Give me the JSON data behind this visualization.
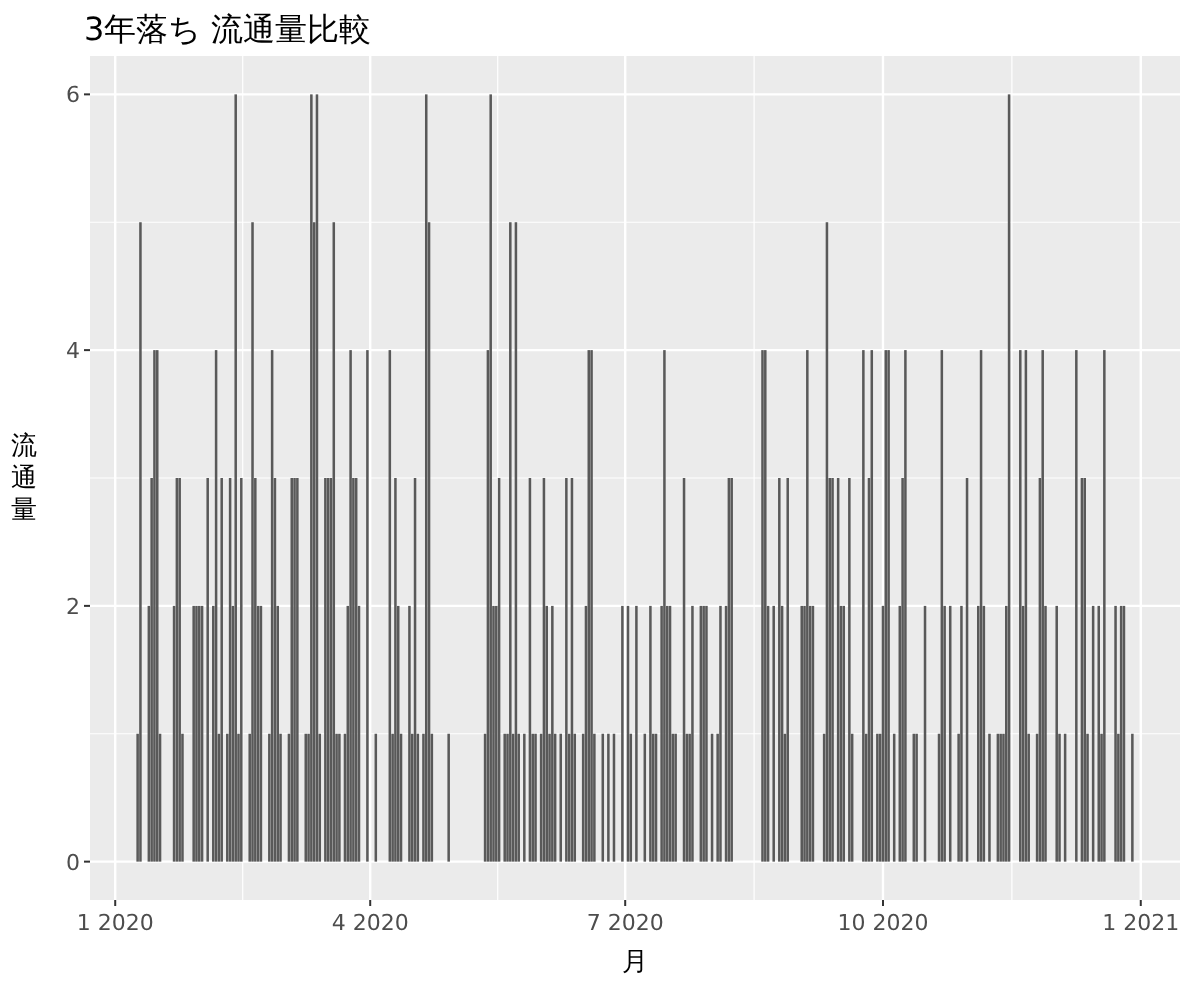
{
  "chart_data": {
    "type": "bar",
    "title": "3年落ち 流通量比較",
    "xlabel": "月",
    "ylabel": "流通量",
    "x": [
      "2020-01-09",
      "2020-01-10",
      "2020-01-13",
      "2020-01-14",
      "2020-01-15",
      "2020-01-16",
      "2020-01-17",
      "2020-01-22",
      "2020-01-23",
      "2020-01-24",
      "2020-01-25",
      "2020-01-29",
      "2020-01-30",
      "2020-01-31",
      "2020-02-01",
      "2020-02-03",
      "2020-02-05",
      "2020-02-06",
      "2020-02-07",
      "2020-02-08",
      "2020-02-10",
      "2020-02-11",
      "2020-02-12",
      "2020-02-13",
      "2020-02-14",
      "2020-02-15",
      "2020-02-18",
      "2020-02-19",
      "2020-02-20",
      "2020-02-21",
      "2020-02-22",
      "2020-02-25",
      "2020-02-26",
      "2020-02-27",
      "2020-02-28",
      "2020-02-29",
      "2020-03-03",
      "2020-03-04",
      "2020-03-05",
      "2020-03-06",
      "2020-03-09",
      "2020-03-10",
      "2020-03-11",
      "2020-03-12",
      "2020-03-13",
      "2020-03-14",
      "2020-03-16",
      "2020-03-17",
      "2020-03-18",
      "2020-03-19",
      "2020-03-20",
      "2020-03-21",
      "2020-03-23",
      "2020-03-24",
      "2020-03-25",
      "2020-03-26",
      "2020-03-27",
      "2020-03-28",
      "2020-03-31",
      "2020-04-03",
      "2020-04-08",
      "2020-04-09",
      "2020-04-10",
      "2020-04-11",
      "2020-04-12",
      "2020-04-15",
      "2020-04-16",
      "2020-04-17",
      "2020-04-18",
      "2020-04-20",
      "2020-04-21",
      "2020-04-22",
      "2020-04-23",
      "2020-04-29",
      "2020-05-12",
      "2020-05-13",
      "2020-05-14",
      "2020-05-15",
      "2020-05-16",
      "2020-05-17",
      "2020-05-19",
      "2020-05-20",
      "2020-05-21",
      "2020-05-22",
      "2020-05-23",
      "2020-05-24",
      "2020-05-26",
      "2020-05-28",
      "2020-05-29",
      "2020-05-30",
      "2020-06-01",
      "2020-06-02",
      "2020-06-03",
      "2020-06-04",
      "2020-06-05",
      "2020-06-06",
      "2020-06-08",
      "2020-06-10",
      "2020-06-11",
      "2020-06-12",
      "2020-06-13",
      "2020-06-16",
      "2020-06-17",
      "2020-06-18",
      "2020-06-19",
      "2020-06-20",
      "2020-06-23",
      "2020-06-25",
      "2020-06-27",
      "2020-06-30",
      "2020-07-02",
      "2020-07-03",
      "2020-07-05",
      "2020-07-08",
      "2020-07-10",
      "2020-07-11",
      "2020-07-12",
      "2020-07-14",
      "2020-07-15",
      "2020-07-16",
      "2020-07-17",
      "2020-07-18",
      "2020-07-19",
      "2020-07-22",
      "2020-07-23",
      "2020-07-24",
      "2020-07-25",
      "2020-07-28",
      "2020-07-29",
      "2020-07-30",
      "2020-08-01",
      "2020-08-03",
      "2020-08-04",
      "2020-08-06",
      "2020-08-07",
      "2020-08-08",
      "2020-08-19",
      "2020-08-20",
      "2020-08-21",
      "2020-08-23",
      "2020-08-25",
      "2020-08-26",
      "2020-08-27",
      "2020-08-28",
      "2020-09-02",
      "2020-09-03",
      "2020-09-04",
      "2020-09-05",
      "2020-09-06",
      "2020-09-10",
      "2020-09-11",
      "2020-09-12",
      "2020-09-13",
      "2020-09-15",
      "2020-09-16",
      "2020-09-17",
      "2020-09-19",
      "2020-09-20",
      "2020-09-24",
      "2020-09-25",
      "2020-09-26",
      "2020-09-27",
      "2020-09-29",
      "2020-09-30",
      "2020-10-01",
      "2020-10-02",
      "2020-10-03",
      "2020-10-05",
      "2020-10-07",
      "2020-10-08",
      "2020-10-09",
      "2020-10-12",
      "2020-10-13",
      "2020-10-16",
      "2020-10-21",
      "2020-10-22",
      "2020-10-23",
      "2020-10-25",
      "2020-10-28",
      "2020-10-29",
      "2020-10-31",
      "2020-11-04",
      "2020-11-05",
      "2020-11-06",
      "2020-11-08",
      "2020-11-11",
      "2020-11-12",
      "2020-11-13",
      "2020-11-14",
      "2020-11-15",
      "2020-11-19",
      "2020-11-20",
      "2020-11-21",
      "2020-11-22",
      "2020-11-25",
      "2020-11-26",
      "2020-11-27",
      "2020-11-28",
      "2020-12-02",
      "2020-12-03",
      "2020-12-05",
      "2020-12-09",
      "2020-12-11",
      "2020-12-12",
      "2020-12-13",
      "2020-12-15",
      "2020-12-17",
      "2020-12-18",
      "2020-12-19",
      "2020-12-23",
      "2020-12-24",
      "2020-12-25",
      "2020-12-26",
      "2020-12-29"
    ],
    "values": [
      1,
      5,
      2,
      3,
      4,
      4,
      1,
      2,
      3,
      3,
      1,
      2,
      2,
      2,
      2,
      3,
      2,
      4,
      1,
      3,
      1,
      3,
      2,
      6,
      1,
      3,
      1,
      5,
      3,
      2,
      2,
      1,
      4,
      3,
      2,
      1,
      1,
      3,
      3,
      3,
      1,
      1,
      6,
      5,
      6,
      1,
      3,
      3,
      3,
      5,
      1,
      1,
      1,
      2,
      4,
      3,
      3,
      2,
      4,
      1,
      4,
      1,
      3,
      2,
      1,
      2,
      1,
      3,
      1,
      1,
      6,
      5,
      1,
      1,
      1,
      4,
      6,
      2,
      2,
      3,
      1,
      1,
      5,
      1,
      5,
      1,
      1,
      3,
      1,
      1,
      1,
      3,
      2,
      1,
      2,
      1,
      1,
      3,
      1,
      3,
      1,
      1,
      2,
      4,
      4,
      1,
      1,
      1,
      1,
      2,
      2,
      1,
      2,
      1,
      2,
      1,
      1,
      2,
      4,
      2,
      2,
      1,
      1,
      3,
      1,
      1,
      2,
      2,
      2,
      2,
      1,
      1,
      2,
      2,
      3,
      3,
      4,
      4,
      2,
      2,
      3,
      2,
      1,
      3,
      2,
      2,
      4,
      2,
      2,
      1,
      5,
      3,
      3,
      3,
      2,
      2,
      3,
      1,
      4,
      1,
      3,
      4,
      1,
      1,
      2,
      4,
      4,
      1,
      2,
      3,
      4,
      1,
      1,
      2,
      1,
      4,
      2,
      2,
      1,
      2,
      3,
      2,
      4,
      2,
      1,
      1,
      1,
      1,
      2,
      6,
      4,
      2,
      4,
      1,
      1,
      3,
      4,
      2,
      2,
      1,
      1,
      4,
      3,
      3,
      1,
      2,
      2,
      1,
      4,
      2,
      1,
      2,
      2,
      1
    ],
    "color": "#595959",
    "xlim": [
      "2019-12-23",
      "2021-01-15"
    ],
    "xticks": [
      {
        "value": "2020-01-01",
        "label": "1 2020"
      },
      {
        "value": "2020-04-01",
        "label": "4 2020"
      },
      {
        "value": "2020-07-01",
        "label": "7 2020"
      },
      {
        "value": "2020-10-01",
        "label": "10 2020"
      },
      {
        "value": "2021-01-01",
        "label": "1 2021"
      }
    ],
    "ylim": [
      -0.3,
      6.3
    ],
    "yticks": [
      0,
      2,
      4,
      6
    ],
    "grid": true
  }
}
